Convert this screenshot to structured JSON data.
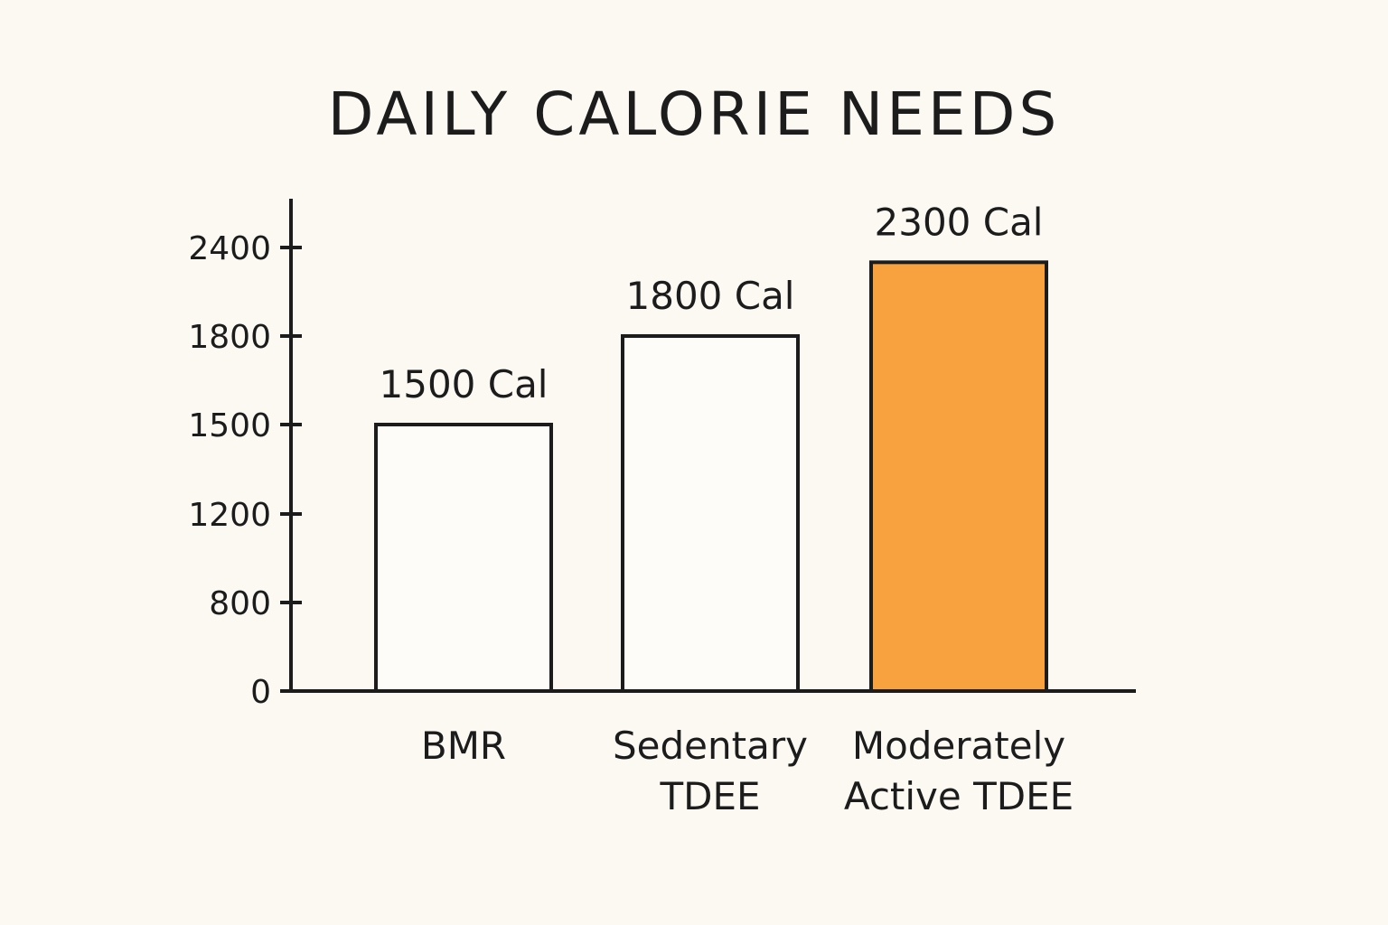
{
  "chart_data": {
    "type": "bar",
    "title": "DAILY CALORIE NEEDS",
    "xlabel": "",
    "ylabel": "",
    "categories": [
      [
        "BMR"
      ],
      [
        "Sedentary",
        "TDEE"
      ],
      [
        "Moderately",
        "Active TDEE"
      ]
    ],
    "values": [
      1500,
      1800,
      2300
    ],
    "data_labels": [
      "1500 Cal",
      "1800 Cal",
      "2300 Cal"
    ],
    "yticks": [
      0,
      800,
      1200,
      1500,
      1800,
      2400
    ],
    "ylim": [
      0,
      2400
    ],
    "grid": false,
    "legend": "none",
    "colors": {
      "default_fill": "#fdfcf9",
      "highlight_fill": "#f7a23e",
      "stroke": "#1c1c1c",
      "highlight_index": 2
    }
  }
}
